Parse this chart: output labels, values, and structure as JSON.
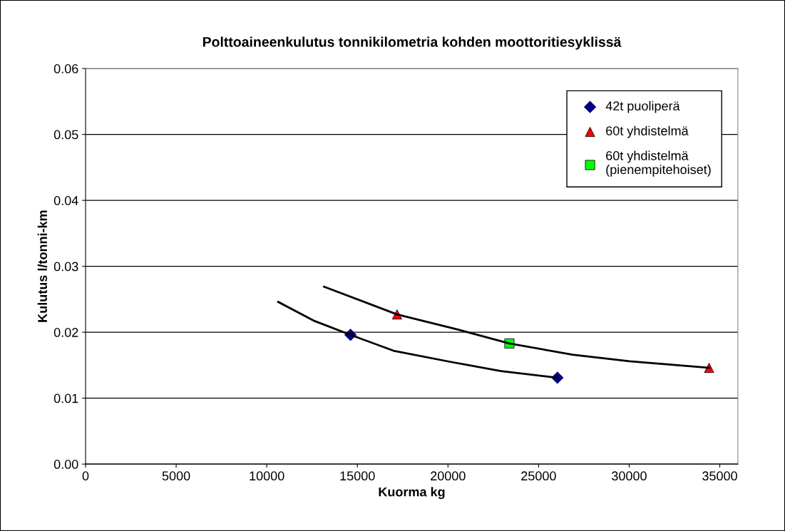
{
  "chart_data": {
    "type": "scatter",
    "title": "Polttoaineenkulutus tonnikilometria kohden moottoritiesyklissä",
    "xlabel": "Kuorma kg",
    "ylabel": "Kulutus l/tonni-km",
    "xlim": [
      0,
      36000
    ],
    "xticks": [
      0,
      5000,
      10000,
      15000,
      20000,
      25000,
      30000,
      35000
    ],
    "ylim": [
      0,
      0.06
    ],
    "yticks": [
      "0.00",
      0.01,
      0.02,
      0.03,
      0.04,
      0.05,
      0.06
    ],
    "grid": "y",
    "legend": "top right",
    "series": [
      {
        "name": "42t puoliperä",
        "color": "#000080",
        "marker": "diamond",
        "x": [
          14620,
          26040
        ],
        "values": [
          0.0196,
          0.0131
        ]
      },
      {
        "name": "60t yhdistelmä",
        "color": "#ff0000",
        "marker": "triangle",
        "x": [
          17190,
          34410
        ],
        "values": [
          0.0227,
          0.0146
        ]
      },
      {
        "name": "60t yhdistelmä\n(pienempitehoiset)",
        "color": "#00ff00",
        "marker": "square",
        "x": [
          23390
        ],
        "values": [
          0.0183
        ]
      },
      {
        "type": "line",
        "color": "#000000",
        "marker": "none",
        "x": [
          10630,
          12640,
          14620,
          16990,
          20150,
          22920,
          26040
        ],
        "values": [
          0.0246,
          0.0217,
          0.0196,
          0.0172,
          0.0155,
          0.0141,
          0.0131
        ]
      },
      {
        "type": "line",
        "color": "#000000",
        "marker": "none",
        "x": [
          13160,
          17190,
          20550,
          23390,
          26870,
          30030,
          34410
        ],
        "values": [
          0.0269,
          0.0227,
          0.0204,
          0.0183,
          0.0166,
          0.0156,
          0.0146
        ]
      }
    ]
  }
}
